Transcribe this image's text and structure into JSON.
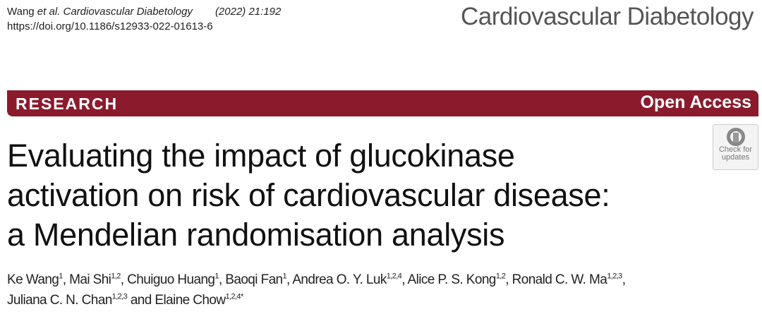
{
  "header": {
    "authors_short": "Wang ",
    "et_al": "et al.",
    "journal_italic": "Cardiovascular Diabetology",
    "citation": "(2022) 21:192",
    "doi": "https://doi.org/10.1186/s12933-022-01613-6"
  },
  "journal_name": "Cardiovascular Diabetology",
  "banner": {
    "type": "RESEARCH",
    "access": "Open Access",
    "color": "#8b1a2d"
  },
  "check_updates": {
    "line1": "Check for",
    "line2": "updates"
  },
  "title": {
    "line1": "Evaluating the impact of glucokinase",
    "line2": "activation on risk of cardiovascular disease:",
    "line3": "a Mendelian randomisation analysis"
  },
  "authors": [
    {
      "name": "Ke Wang",
      "sup": "1",
      "sep": ", "
    },
    {
      "name": "Mai Shi",
      "sup": "1,2",
      "sep": ", "
    },
    {
      "name": "Chuiguo Huang",
      "sup": "1",
      "sep": ", "
    },
    {
      "name": "Baoqi Fan",
      "sup": "1",
      "sep": ", "
    },
    {
      "name": "Andrea O. Y. Luk",
      "sup": "1,2,4",
      "sep": ", "
    },
    {
      "name": "Alice P. S. Kong",
      "sup": "1,2",
      "sep": ", "
    },
    {
      "name": "Ronald C. W. Ma",
      "sup": "1,2,3",
      "sep": ","
    },
    {
      "name": "Juliana C. N. Chan",
      "sup": "1,2,3",
      "sep": " and "
    },
    {
      "name": "Elaine Chow",
      "sup": "1,2,4*",
      "sep": ""
    }
  ]
}
